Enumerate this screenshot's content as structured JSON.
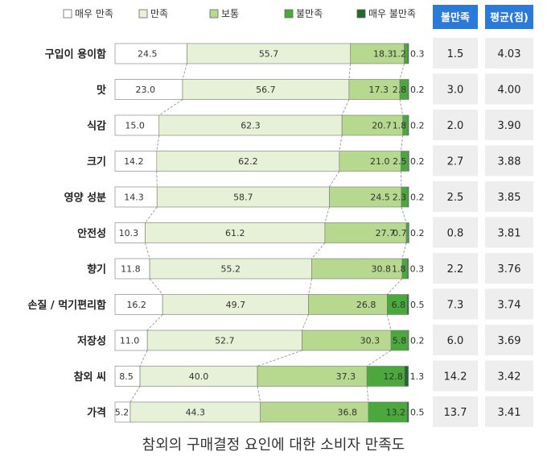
{
  "chart_data": {
    "type": "bar",
    "orientation": "horizontal",
    "stacked": true,
    "title": "참외의 구매결정 요인에 대한 소비자 만족도",
    "legend_position": "top",
    "categories": [
      "구입이 용이함",
      "맛",
      "식감",
      "크기",
      "영양 성분",
      "안전성",
      "향기",
      "손질 / 먹기편리함",
      "저장성",
      "참외 씨",
      "가격"
    ],
    "series": [
      {
        "name": "매우 만족",
        "color": "#ffffff",
        "values": [
          24.5,
          23.0,
          15.0,
          14.2,
          14.3,
          10.3,
          11.8,
          16.2,
          11.0,
          8.5,
          5.2
        ]
      },
      {
        "name": "만족",
        "color": "#e6f1d8",
        "values": [
          55.7,
          56.7,
          62.3,
          62.2,
          58.7,
          61.2,
          55.2,
          49.7,
          52.7,
          40.0,
          44.3
        ]
      },
      {
        "name": "보통",
        "color": "#b7d88f",
        "values": [
          18.3,
          17.3,
          20.7,
          21.0,
          24.5,
          27.7,
          30.8,
          26.8,
          30.3,
          37.3,
          36.8
        ]
      },
      {
        "name": "불만족",
        "color": "#4aa83c",
        "values": [
          1.2,
          2.8,
          1.8,
          2.5,
          2.3,
          0.7,
          1.8,
          6.8,
          5.8,
          12.8,
          13.2
        ]
      },
      {
        "name": "매우 불만족",
        "color": "#1f6b2c",
        "values": [
          0.3,
          0.2,
          0.2,
          0.2,
          0.2,
          0.2,
          0.3,
          0.5,
          0.2,
          1.3,
          0.5
        ]
      }
    ],
    "table": {
      "headers": [
        "불만족",
        "평균(점)"
      ],
      "header_color": "#2b7ad9",
      "cell_color": "#eeeeee",
      "dissatisfied": [
        "1.5",
        "3.0",
        "2.0",
        "2.7",
        "2.5",
        "0.8",
        "2.2",
        "7.3",
        "6.0",
        "14.2",
        "13.7"
      ],
      "average": [
        "4.03",
        "4.00",
        "3.90",
        "3.88",
        "3.85",
        "3.81",
        "3.76",
        "3.74",
        "3.69",
        "3.42",
        "3.41"
      ]
    }
  }
}
